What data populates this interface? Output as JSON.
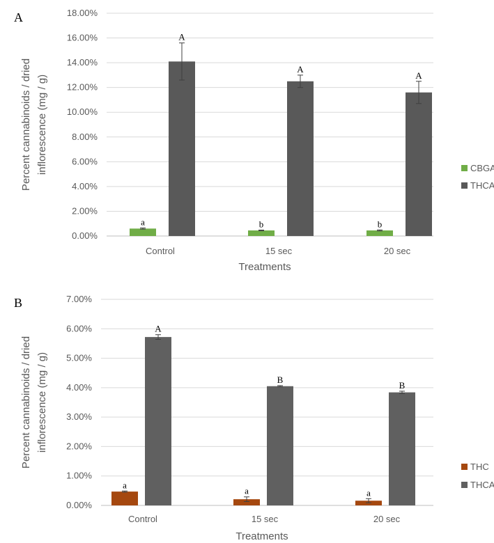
{
  "chart_data": [
    {
      "type": "bar",
      "panel_label": "A",
      "categories": [
        "Control",
        "15 sec",
        "20 sec"
      ],
      "series": [
        {
          "name": "CBGA",
          "color": "#70ad47",
          "values": [
            0.6,
            0.45,
            0.45
          ],
          "errors": [
            0.05,
            0.03,
            0.04
          ],
          "letters": [
            "a",
            "b",
            "b"
          ]
        },
        {
          "name": "THCA",
          "color": "#595959",
          "values": [
            14.1,
            12.5,
            11.6
          ],
          "errors": [
            1.5,
            0.5,
            0.9
          ],
          "letters": [
            "A",
            "A",
            "A"
          ]
        }
      ],
      "yticks": [
        "0.00%",
        "2.00%",
        "4.00%",
        "6.00%",
        "8.00%",
        "10.00%",
        "12.00%",
        "14.00%",
        "16.00%",
        "18.00%"
      ],
      "ylim": [
        0,
        18
      ],
      "xlabel": "Treatments",
      "ylabel_lines": [
        "Percent cannabinoids / dried",
        "inflorescence (mg / g)"
      ],
      "grid": true,
      "legend_position": "right"
    },
    {
      "type": "bar",
      "panel_label": "B",
      "categories": [
        "Control",
        "15 sec",
        "20 sec"
      ],
      "series": [
        {
          "name": "THC",
          "color": "#a5480f",
          "values": [
            0.47,
            0.21,
            0.16
          ],
          "errors": [
            0.02,
            0.08,
            0.07
          ],
          "letters": [
            "a",
            "a",
            "a"
          ]
        },
        {
          "name": "THCA",
          "color": "#606060",
          "values": [
            5.72,
            4.05,
            3.84
          ],
          "errors": [
            0.08,
            0.02,
            0.04
          ],
          "letters": [
            "A",
            "B",
            "B"
          ]
        }
      ],
      "yticks": [
        "0.00%",
        "1.00%",
        "2.00%",
        "3.00%",
        "4.00%",
        "5.00%",
        "6.00%",
        "7.00%"
      ],
      "ylim": [
        0,
        7
      ],
      "xlabel": "Treatments",
      "ylabel_lines": [
        "Percent cannabinoids / dried",
        "inflorescence (mg / g)"
      ],
      "grid": true,
      "legend_position": "right"
    }
  ]
}
